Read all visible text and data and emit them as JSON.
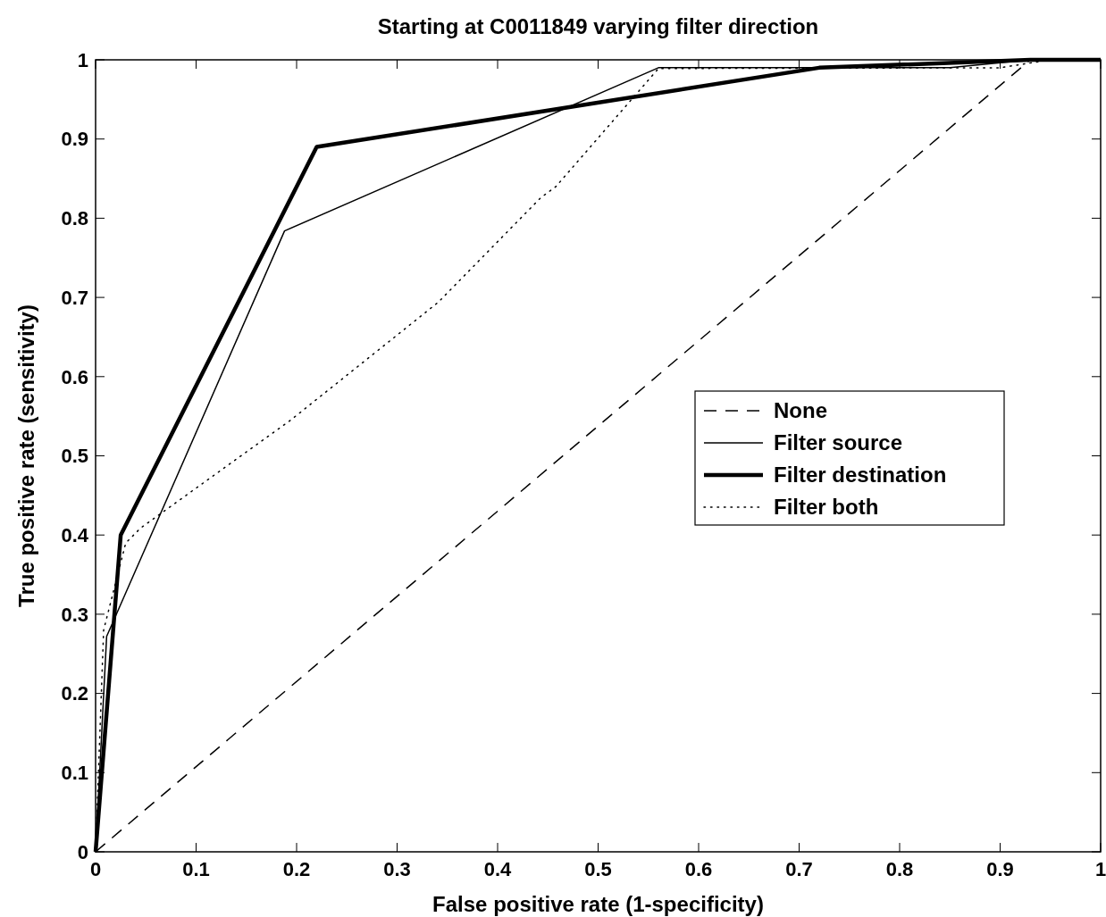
{
  "chart_data": {
    "type": "line",
    "title": "Starting at C0011849 varying filter direction",
    "xlabel": "False positive rate (1-specificity)",
    "ylabel": "True positive rate (sensitivity)",
    "xlim": [
      0,
      1
    ],
    "ylim": [
      0,
      1
    ],
    "xticks": [
      0,
      0.1,
      0.2,
      0.3,
      0.4,
      0.5,
      0.6,
      0.7,
      0.8,
      0.9,
      1
    ],
    "yticks": [
      0,
      0.1,
      0.2,
      0.3,
      0.4,
      0.5,
      0.6,
      0.7,
      0.8,
      0.9,
      1
    ],
    "grid": false,
    "legend": "right",
    "marker": "none",
    "series": [
      {
        "name": "None",
        "color": "#000000",
        "line_style": "dashed",
        "x": [
          0,
          0.93,
          1
        ],
        "values": [
          0,
          1,
          1
        ]
      },
      {
        "name": "Filter source",
        "color": "#000000",
        "line_style": "solid",
        "x": [
          0,
          0.011,
          0.188,
          0.56,
          0.85,
          0.93,
          1
        ],
        "values": [
          0,
          0.272,
          0.784,
          0.99,
          0.99,
          1,
          1
        ]
      },
      {
        "name": "Filter destination",
        "color": "#000000",
        "line_style": "solid",
        "x": [
          0,
          0.025,
          0.22,
          0.72,
          0.93,
          1
        ],
        "values": [
          0,
          0.4,
          0.89,
          0.99,
          1,
          1
        ]
      },
      {
        "name": "Filter both",
        "color": "#000000",
        "line_style": "dotted",
        "x": [
          0,
          0.008,
          0.03,
          0.045,
          0.194,
          0.341,
          0.443,
          0.458,
          0.56,
          0.9,
          0.95,
          1
        ],
        "values": [
          0,
          0.28,
          0.39,
          0.409,
          0.545,
          0.694,
          0.826,
          0.84,
          0.989,
          0.99,
          1,
          1
        ]
      }
    ]
  }
}
